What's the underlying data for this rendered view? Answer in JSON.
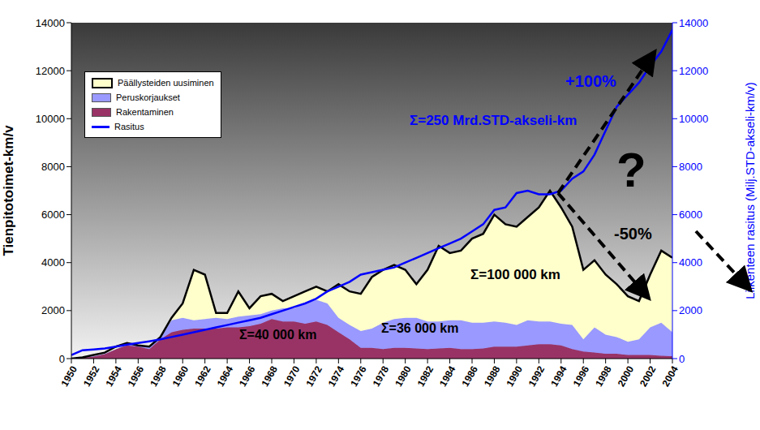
{
  "chart_data": {
    "type": "area",
    "stacked": true,
    "grid": false,
    "legend": "upper left",
    "x_label": "",
    "y_label": "Tienpitotoimet-km/v",
    "y2_label": "Liikenteen rasitus (Milj.STD-akseli-km/v)",
    "x": [
      1950,
      1951,
      1952,
      1953,
      1954,
      1955,
      1956,
      1957,
      1958,
      1959,
      1960,
      1961,
      1962,
      1963,
      1964,
      1965,
      1966,
      1967,
      1968,
      1969,
      1970,
      1971,
      1972,
      1973,
      1974,
      1975,
      1976,
      1977,
      1978,
      1979,
      1980,
      1981,
      1982,
      1983,
      1984,
      1985,
      1986,
      1987,
      1988,
      1989,
      1990,
      1991,
      1992,
      1993,
      1994,
      1995,
      1996,
      1997,
      1998,
      1999,
      2000,
      2001,
      2002,
      2003,
      2004
    ],
    "xlim": [
      1950,
      2004
    ],
    "xticks": [
      1950,
      1952,
      1954,
      1956,
      1958,
      1960,
      1962,
      1964,
      1966,
      1968,
      1970,
      1972,
      1974,
      1976,
      1978,
      1980,
      1982,
      1984,
      1986,
      1988,
      1990,
      1992,
      1994,
      1996,
      1998,
      2000,
      2002,
      2004
    ],
    "ylim": [
      0,
      14000
    ],
    "yticks": [
      0,
      2000,
      4000,
      6000,
      8000,
      10000,
      12000,
      14000
    ],
    "y2lim": [
      0,
      14000
    ],
    "y2ticks": [
      0,
      2000,
      4000,
      6000,
      8000,
      10000,
      12000,
      14000
    ],
    "series": [
      {
        "name": "Päällysteiden uusiminen",
        "type": "area",
        "color": "#ffffcc",
        "values": [
          0,
          0,
          50,
          50,
          100,
          50,
          0,
          0,
          0,
          100,
          600,
          2100,
          1850,
          200,
          250,
          1050,
          300,
          750,
          700,
          300,
          500,
          500,
          550,
          500,
          1400,
          1400,
          1550,
          2150,
          2200,
          2250,
          2000,
          1400,
          2150,
          3150,
          2800,
          2900,
          3500,
          3700,
          4450,
          4100,
          4100,
          4300,
          4750,
          5450,
          4850,
          4100,
          2900,
          2800,
          2500,
          2200,
          1900,
          1600,
          2200,
          3000,
          3100
        ]
      },
      {
        "name": "Peruskorjaukset",
        "type": "area",
        "color": "#9999ff",
        "values": [
          0,
          0,
          0,
          0,
          0,
          50,
          50,
          100,
          100,
          500,
          500,
          350,
          400,
          450,
          350,
          450,
          450,
          400,
          350,
          550,
          550,
          850,
          900,
          900,
          600,
          600,
          700,
          800,
          1100,
          1200,
          1250,
          1280,
          1150,
          1130,
          1150,
          1200,
          1100,
          1080,
          1050,
          1000,
          900,
          1050,
          950,
          950,
          900,
          1000,
          500,
          1050,
          800,
          700,
          550,
          650,
          1150,
          1380,
          1000
        ]
      },
      {
        "name": "Rakentaminen",
        "type": "area",
        "color": "#993366",
        "values": [
          0,
          50,
          100,
          200,
          400,
          550,
          500,
          400,
          800,
          1100,
          1200,
          1250,
          1250,
          1250,
          1300,
          1300,
          1350,
          1450,
          1650,
          1550,
          1550,
          1450,
          1550,
          1400,
          1100,
          800,
          450,
          450,
          400,
          450,
          450,
          420,
          400,
          420,
          450,
          400,
          400,
          420,
          500,
          500,
          500,
          550,
          600,
          600,
          550,
          400,
          300,
          250,
          200,
          200,
          150,
          150,
          150,
          120,
          100
        ]
      },
      {
        "name": "Rasitus",
        "type": "line",
        "axis": "y2",
        "color": "#0000ff",
        "values": [
          150,
          350,
          380,
          420,
          500,
          580,
          650,
          720,
          800,
          900,
          1000,
          1100,
          1200,
          1300,
          1400,
          1500,
          1600,
          1700,
          1850,
          2000,
          2150,
          2300,
          2500,
          2800,
          3000,
          3200,
          3500,
          3600,
          3700,
          3800,
          4000,
          4200,
          4400,
          4600,
          4800,
          5000,
          5300,
          5600,
          6200,
          6300,
          6900,
          7000,
          6850,
          6850,
          7000,
          7500,
          7800,
          8500,
          9500,
          10500,
          11000,
          11500,
          12200,
          12800,
          13700
        ]
      }
    ],
    "annotations": [
      {
        "text": "+100%",
        "color": "#0000ff"
      },
      {
        "text": "Σ=250 Mrd.STD-akseli-km",
        "color": "#0000ff"
      },
      {
        "text": "?",
        "color": "#000000"
      },
      {
        "text": "-50%",
        "color": "#000000"
      },
      {
        "text": "Σ=100 000 km",
        "color": "#000000"
      },
      {
        "text": "Σ=36 000 km",
        "color": "#000000"
      },
      {
        "text": "Σ=40 000 km",
        "color": "#000000"
      }
    ]
  }
}
